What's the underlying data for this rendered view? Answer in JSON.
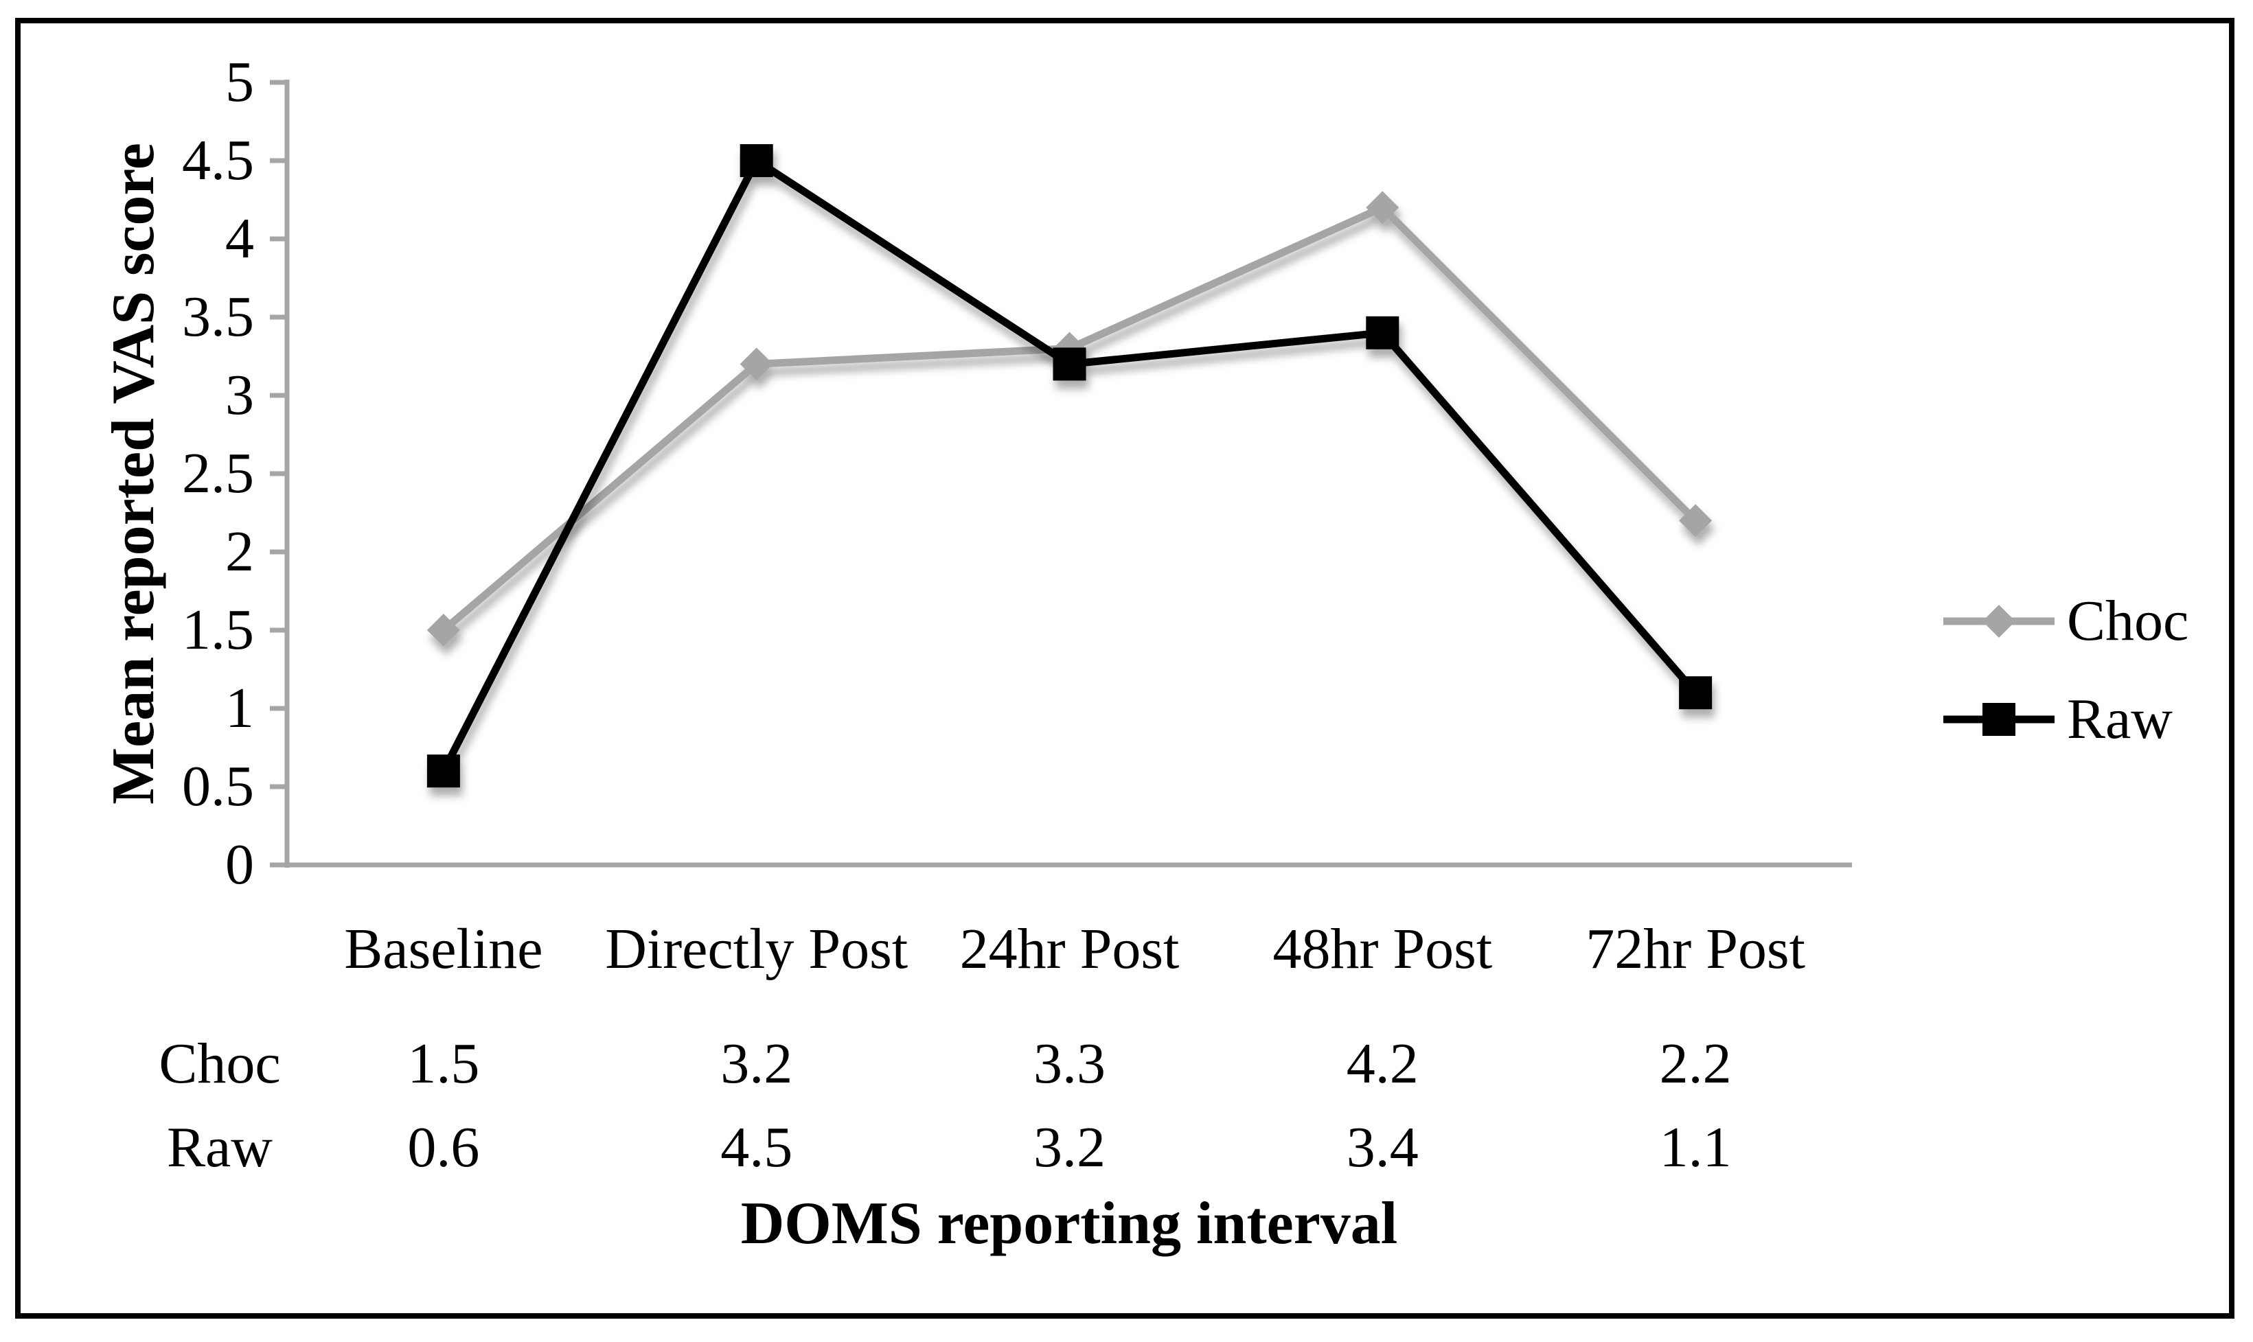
{
  "chart_data": {
    "type": "line",
    "categories": [
      "Baseline",
      "Directly Post",
      "24hr Post",
      "48hr Post",
      "72hr Post"
    ],
    "series": [
      {
        "name": "Choc",
        "values": [
          1.5,
          3.2,
          3.3,
          4.2,
          2.2
        ],
        "color": "#A5A5A5",
        "marker": "diamond"
      },
      {
        "name": "Raw",
        "values": [
          0.6,
          4.5,
          3.2,
          3.4,
          1.1
        ],
        "color": "#000000",
        "marker": "square"
      }
    ],
    "title": "",
    "xlabel": "DOMS reporting interval",
    "ylabel": "Mean reported VAS score",
    "ylim": [
      0,
      5
    ],
    "ytick_step": 0.5,
    "ytick_labels": [
      "0",
      "0.5",
      "1",
      "1.5",
      "2",
      "2.5",
      "3",
      "3.5",
      "4",
      "4.5",
      "5"
    ],
    "grid": false,
    "legend_position": "right",
    "legend_entries": [
      "Choc",
      "Raw"
    ],
    "data_table_rows": [
      {
        "label": "Choc",
        "cells": [
          "1.5",
          "3.2",
          "3.3",
          "4.2",
          "2.2"
        ]
      },
      {
        "label": "Raw",
        "cells": [
          "0.6",
          "4.5",
          "3.2",
          "3.4",
          "1.1"
        ]
      }
    ],
    "colors": {
      "axis": "#A6A6A6",
      "text": "#000000",
      "background": "#FFFFFF",
      "frame_border": "#000000",
      "series_choc": "#A5A5A5",
      "series_raw": "#000000"
    }
  }
}
